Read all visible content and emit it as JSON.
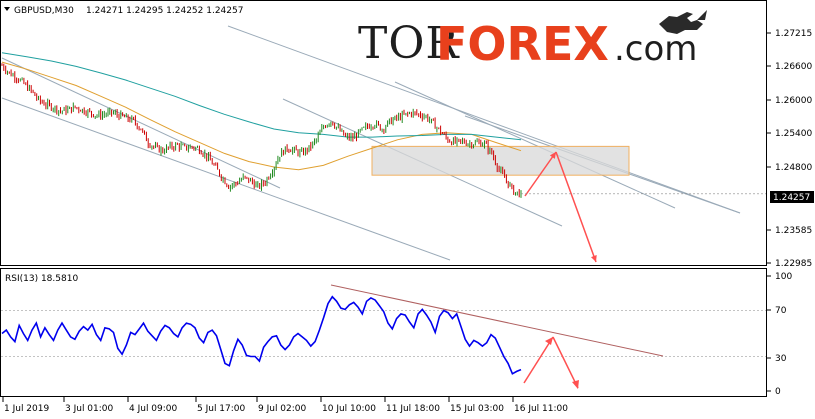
{
  "header": {
    "symbol_tf": "GBPUSD,M30",
    "ohlc": "1.24271 1.24295 1.24252 1.24257"
  },
  "watermark": {
    "part1": "TOR",
    "part2": "FOREX",
    "part3": ".com",
    "logo_icon": "bull-logo-icon"
  },
  "price_axis": {
    "ticks": [
      "1.27215",
      "1.26600",
      "1.26000",
      "1.25400",
      "1.24800",
      "1.24257",
      "1.23585",
      "1.22985"
    ],
    "current_price": "1.24257"
  },
  "rsi_panel": {
    "label": "RSI(13) 18.5810",
    "ticks": [
      "100",
      "70",
      "30",
      "0"
    ]
  },
  "time_axis": {
    "ticks": [
      "1 Jul 2019",
      "3 Jul 01:00",
      "4 Jul 09:00",
      "5 Jul 17:00",
      "9 Jul 02:00",
      "10 Jul 10:00",
      "11 Jul 18:00",
      "15 Jul 03:00",
      "16 Jul 11:00"
    ]
  },
  "colors": {
    "bull": "#228b22",
    "bear": "#cc0000",
    "ma_fast": "#e0a030",
    "ma_slow": "#20a0a0",
    "rsi_line": "#0000ee",
    "channel": "#9aaab8",
    "zone_fill": "#d8d8d8",
    "zone_border": "#f0b060",
    "arrow": "#ff5050",
    "rsi_trend": "#b06060"
  },
  "chart_data": [
    {
      "type": "candlestick",
      "symbol": "GBPUSD",
      "timeframe": "M30",
      "ylim": [
        1.229,
        1.275
      ],
      "y_ticks": [
        1.27215,
        1.266,
        1.26,
        1.254,
        1.248,
        1.23585,
        1.22985
      ],
      "x": [
        "1 Jul 2019",
        "3 Jul 01:00",
        "4 Jul 09:00",
        "5 Jul 17:00",
        "9 Jul 02:00",
        "10 Jul 10:00",
        "11 Jul 18:00",
        "15 Jul 03:00",
        "16 Jul 11:00"
      ],
      "close_path": [
        1.2662,
        1.2648,
        1.264,
        1.2628,
        1.2615,
        1.2598,
        1.259,
        1.2585,
        1.2578,
        1.258,
        1.2585,
        1.258,
        1.2575,
        1.257,
        1.2572,
        1.2575,
        1.257,
        1.2565,
        1.256,
        1.2545,
        1.252,
        1.251,
        1.2505,
        1.2512,
        1.2515,
        1.251,
        1.2512,
        1.2508,
        1.2495,
        1.2478,
        1.2458,
        1.244,
        1.2445,
        1.2455,
        1.245,
        1.2438,
        1.2448,
        1.247,
        1.2498,
        1.251,
        1.2505,
        1.25,
        1.251,
        1.2525,
        1.255,
        1.256,
        1.2545,
        1.253,
        1.2528,
        1.254,
        1.255,
        1.2555,
        1.2545,
        1.2558,
        1.2565,
        1.257,
        1.2575,
        1.2572,
        1.2568,
        1.2555,
        1.254,
        1.2525,
        1.252,
        1.2522,
        1.2518,
        1.252,
        1.2518,
        1.25,
        1.247,
        1.245,
        1.243,
        1.2425
      ],
      "moving_averages": [
        {
          "color": "#e0a030",
          "values": [
            1.2668,
            1.2655,
            1.264,
            1.2625,
            1.2605,
            1.2585,
            1.2562,
            1.254,
            1.252,
            1.25,
            1.2485,
            1.2475,
            1.247,
            1.2478,
            1.2495,
            1.251,
            1.2525,
            1.2535,
            1.2538,
            1.2535,
            1.252,
            1.2505
          ]
        },
        {
          "color": "#20a0a0",
          "values": [
            1.2685,
            1.2678,
            1.267,
            1.266,
            1.2648,
            1.2635,
            1.262,
            1.2605,
            1.2588,
            1.2572,
            1.2558,
            1.2545,
            1.2538,
            1.2535,
            1.253,
            1.253,
            1.2532,
            1.2533,
            1.2535,
            1.2535,
            1.253,
            1.2525
          ]
        }
      ],
      "last_price": 1.24257,
      "zone": {
        "from": 1.246,
        "to": 1.2513
      }
    },
    {
      "type": "line",
      "name": "RSI(13)",
      "ylim": [
        0,
        100
      ],
      "y_ticks": [
        100,
        70,
        30,
        0
      ],
      "values": [
        50,
        53,
        47,
        43,
        57,
        50,
        44,
        53,
        59,
        47,
        55,
        49,
        44,
        53,
        59,
        53,
        47,
        45,
        52,
        56,
        53,
        58,
        49,
        44,
        55,
        54,
        51,
        37,
        32,
        40,
        51,
        49,
        54,
        59,
        52,
        48,
        44,
        52,
        57,
        55,
        50,
        47,
        55,
        59,
        58,
        55,
        46,
        42,
        51,
        53,
        48,
        36,
        24,
        22,
        35,
        45,
        40,
        31,
        30,
        30,
        26,
        38,
        43,
        47,
        48,
        40,
        36,
        40,
        47,
        50,
        47,
        44,
        39,
        43,
        53,
        64,
        76,
        82,
        78,
        72,
        71,
        75,
        77,
        73,
        67,
        78,
        81,
        79,
        74,
        69,
        59,
        54,
        63,
        67,
        66,
        60,
        55,
        67,
        71,
        66,
        60,
        51,
        65,
        70,
        68,
        63,
        67,
        56,
        45,
        39,
        44,
        42,
        39,
        42,
        49,
        46,
        38,
        30,
        24,
        15,
        17,
        18.58
      ],
      "last_value": 18.581
    }
  ]
}
